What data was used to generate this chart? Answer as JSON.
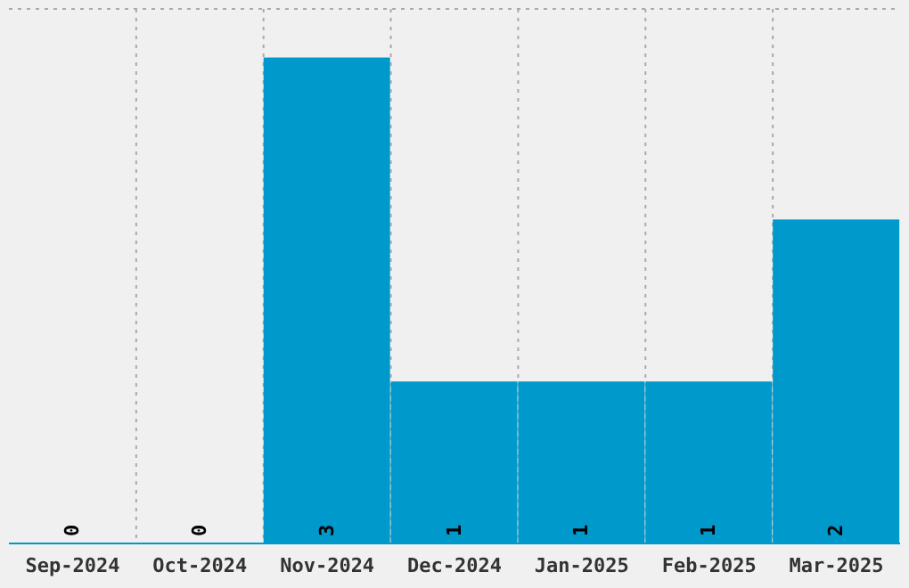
{
  "chart_data": {
    "type": "bar",
    "categories": [
      "Sep-2024",
      "Oct-2024",
      "Nov-2024",
      "Dec-2024",
      "Jan-2025",
      "Feb-2025",
      "Mar-2025"
    ],
    "values": [
      0,
      0,
      3,
      1,
      1,
      1,
      2
    ],
    "color": "#0099cc",
    "data_labels": true,
    "grid": true,
    "tick_labels": "x"
  }
}
